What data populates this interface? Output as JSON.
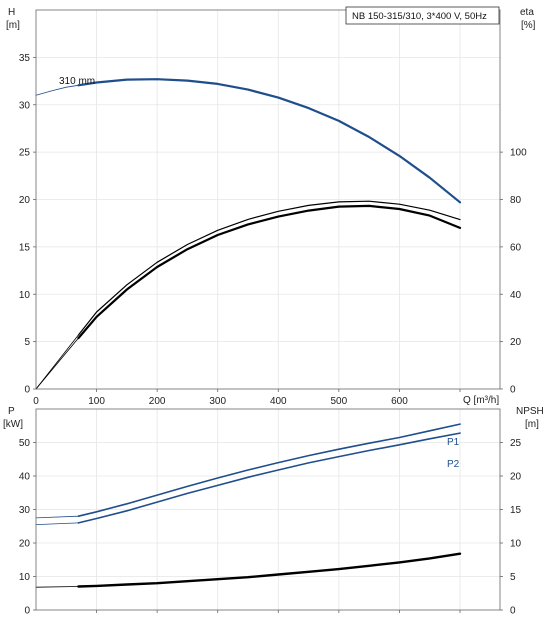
{
  "chart_data": [
    {
      "type": "line",
      "title": "",
      "legend_box": "NB 150-315/310, 3*400 V, 50Hz",
      "grid": true,
      "xlabel": "Q [m³/h]",
      "xlim": [
        0,
        700
      ],
      "xticks": [
        "0",
        "100",
        "200",
        "300",
        "400",
        "500",
        "600"
      ],
      "y_left": {
        "label_top": "H",
        "label_unit": "[m]",
        "lim": [
          0,
          40
        ],
        "ticks": [
          "0",
          "5",
          "10",
          "15",
          "20",
          "25",
          "30",
          "35"
        ]
      },
      "y_right": {
        "label_top": "eta",
        "label_unit": "[%]",
        "lim": [
          0,
          160
        ],
        "ticks": [
          "0",
          "20",
          "40",
          "60",
          "80",
          "100"
        ]
      },
      "series": [
        {
          "name": "310 mm",
          "kind": "head",
          "axis": "left",
          "color": "#1f4e8c",
          "x": [
            0,
            25,
            50,
            70,
            100,
            150,
            200,
            250,
            300,
            350,
            400,
            450,
            500,
            550,
            600,
            650,
            700
          ],
          "y": [
            31.0,
            31.45,
            31.85,
            32.05,
            32.35,
            32.65,
            32.7,
            32.55,
            32.2,
            31.6,
            30.75,
            29.65,
            28.3,
            26.6,
            24.6,
            22.3,
            19.7
          ]
        },
        {
          "name": "",
          "kind": "efficiency",
          "axis": "right",
          "color": "#000000",
          "x": [
            0,
            70,
            100,
            150,
            200,
            250,
            300,
            350,
            400,
            450,
            500,
            550,
            600,
            650,
            700
          ],
          "y": [
            0,
            22.8,
            32.5,
            44,
            53.5,
            61,
            67,
            71.6,
            75,
            77.5,
            79,
            79.3,
            78,
            75.5,
            71.5
          ]
        },
        {
          "name": "",
          "kind": "efficiency",
          "axis": "right",
          "color": "#000000",
          "x": [
            0,
            70,
            100,
            150,
            200,
            250,
            300,
            350,
            400,
            450,
            500,
            550,
            600,
            650,
            700
          ],
          "y": [
            0,
            21.5,
            30.5,
            42,
            51.5,
            59,
            65,
            69.5,
            72.8,
            75.3,
            77,
            77.3,
            76,
            73.2,
            68
          ]
        }
      ]
    },
    {
      "type": "line",
      "title": "",
      "grid": true,
      "xlim": [
        0,
        700
      ],
      "y_left": {
        "label_top": "P",
        "label_unit": "[kW]",
        "lim": [
          0,
          60
        ],
        "ticks": [
          "0",
          "10",
          "20",
          "30",
          "40",
          "50"
        ]
      },
      "y_right": {
        "label_top": "NPSH",
        "label_unit": "[m]",
        "lim": [
          0,
          30
        ],
        "ticks": [
          "0",
          "5",
          "10",
          "15",
          "20",
          "25"
        ]
      },
      "series": [
        {
          "name": "P1",
          "axis": "left",
          "color": "#1f4e8c",
          "x": [
            0,
            70,
            100,
            150,
            200,
            250,
            300,
            350,
            400,
            450,
            500,
            550,
            600,
            650,
            700
          ],
          "y": [
            27.5,
            28.0,
            29.3,
            31.7,
            34.3,
            36.9,
            39.4,
            41.8,
            44.0,
            46.1,
            48.0,
            49.8,
            51.5,
            53.5,
            55.5
          ]
        },
        {
          "name": "P2",
          "axis": "left",
          "color": "#1f4e8c",
          "x": [
            0,
            70,
            100,
            150,
            200,
            250,
            300,
            350,
            400,
            450,
            500,
            550,
            600,
            650,
            700
          ],
          "y": [
            25.5,
            26.0,
            27.3,
            29.6,
            32.2,
            34.8,
            37.2,
            39.6,
            41.8,
            43.9,
            45.8,
            47.6,
            49.3,
            51.1,
            52.8
          ]
        },
        {
          "name": "",
          "kind": "npsh",
          "axis": "right",
          "color": "#000000",
          "x": [
            0,
            70,
            100,
            150,
            200,
            250,
            300,
            350,
            400,
            450,
            500,
            550,
            600,
            650,
            700
          ],
          "y": [
            3.4,
            3.5,
            3.6,
            3.8,
            4.0,
            4.3,
            4.6,
            4.9,
            5.3,
            5.7,
            6.1,
            6.6,
            7.1,
            7.7,
            8.4
          ]
        }
      ]
    }
  ]
}
